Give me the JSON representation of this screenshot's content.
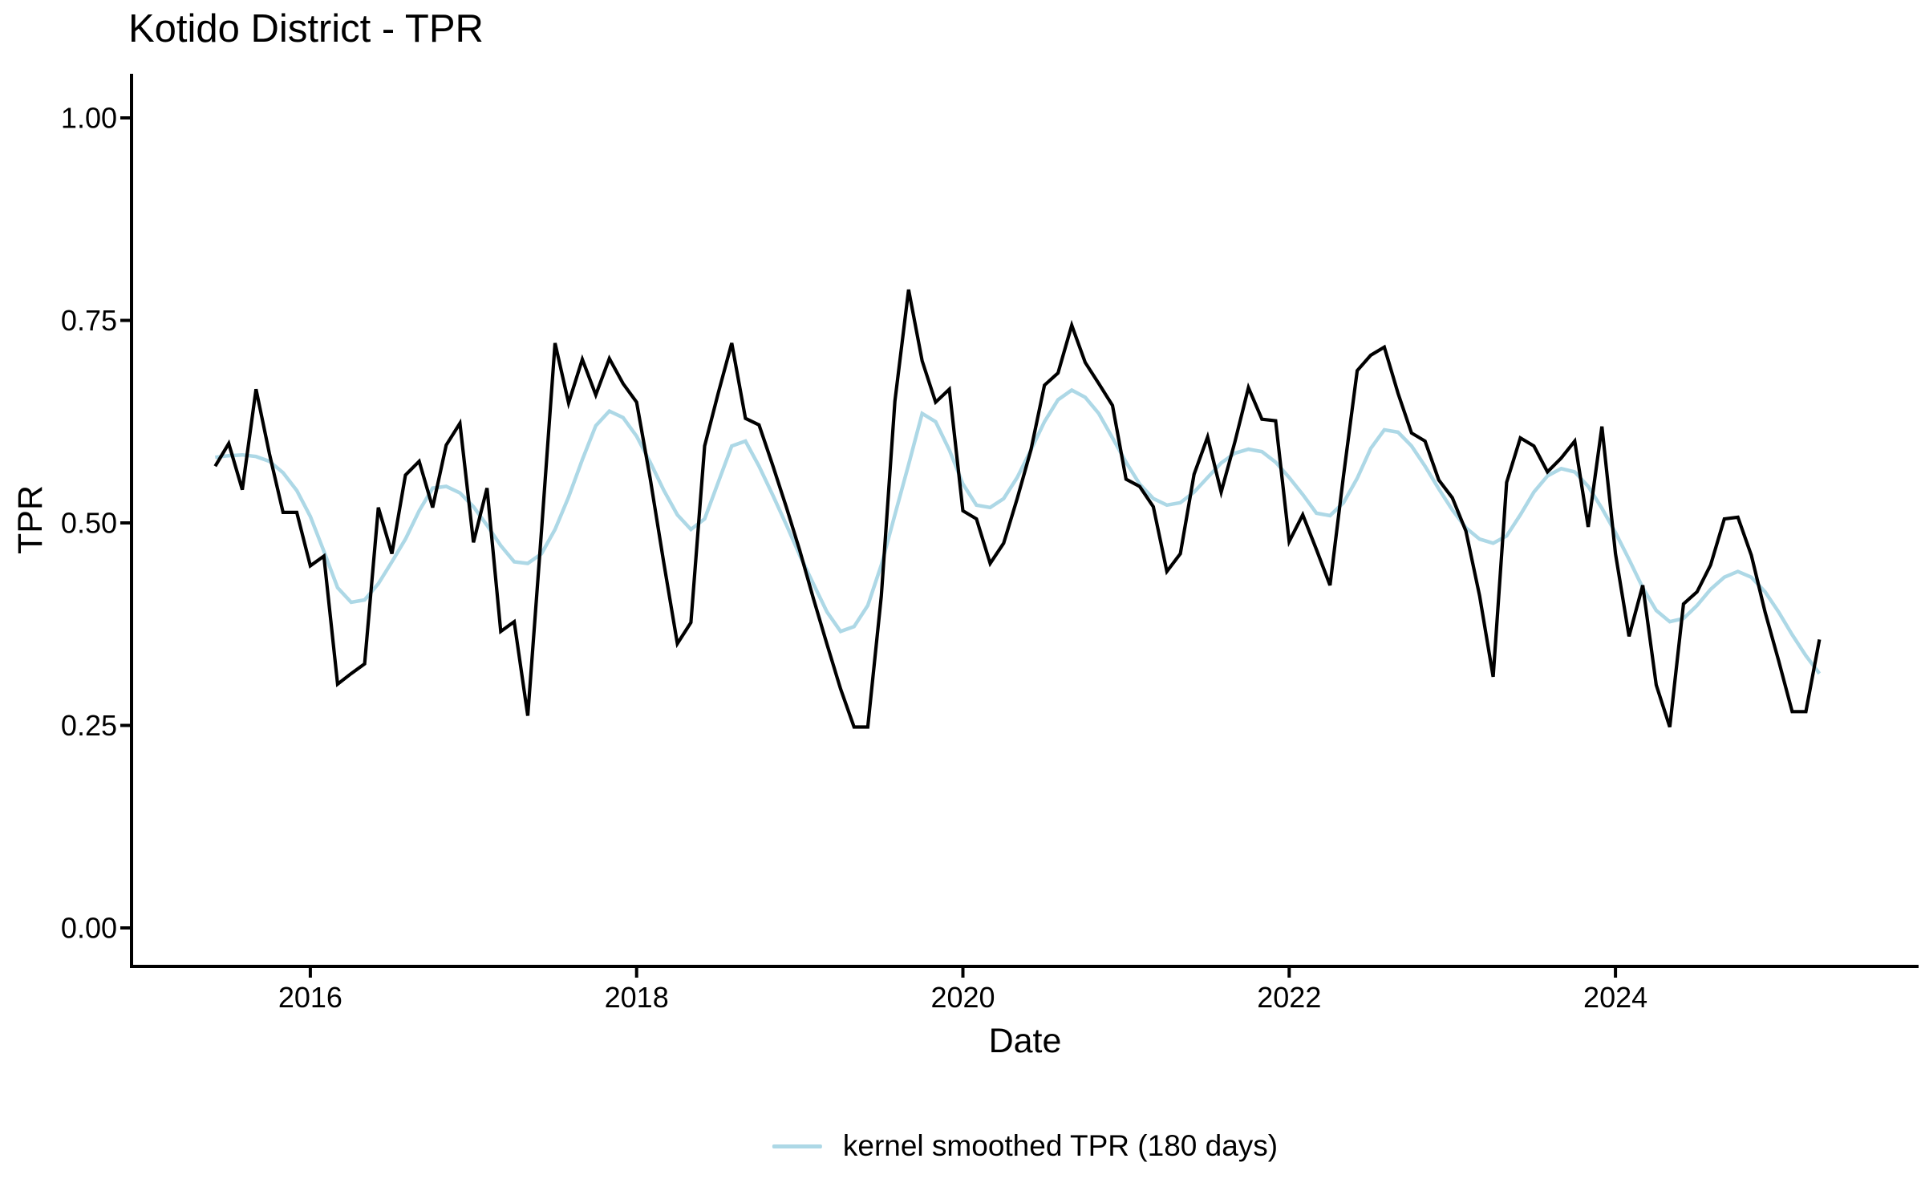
{
  "title": "Kotido District - TPR",
  "axes": {
    "x_label": "Date",
    "y_label": "TPR",
    "x_tick_values": [
      2016,
      2018,
      2020,
      2022,
      2024
    ],
    "x_tick_labels": [
      "2016",
      "2018",
      "2020",
      "2022",
      "2024"
    ],
    "y_tick_values": [
      0,
      0.25,
      0.5,
      0.75,
      1
    ],
    "y_tick_labels": [
      "0.00",
      "0.25",
      "0.50",
      "0.75",
      "1.00"
    ]
  },
  "legend": {
    "label": "kernel smoothed TPR (180 days)",
    "swatch_color": "#ADD8E6"
  },
  "colors": {
    "raw_line": "#000000",
    "smoothed_line": "#ADD8E6",
    "axis": "#000000",
    "background": "#ffffff"
  },
  "chart_data": {
    "type": "line",
    "title": "Kotido District - TPR",
    "xlabel": "Date",
    "ylabel": "TPR",
    "xlim": [
      2014.9,
      2025.85
    ],
    "ylim": [
      -0.048,
      1.062
    ],
    "grid": false,
    "legend_position": "bottom",
    "x_unit": "decimal_year_monthly",
    "x": [
      2015.417,
      2015.5,
      2015.583,
      2015.667,
      2015.75,
      2015.833,
      2015.917,
      2016,
      2016.083,
      2016.167,
      2016.25,
      2016.333,
      2016.417,
      2016.5,
      2016.583,
      2016.667,
      2016.75,
      2016.833,
      2016.917,
      2017,
      2017.083,
      2017.167,
      2017.25,
      2017.333,
      2017.417,
      2017.5,
      2017.583,
      2017.667,
      2017.75,
      2017.833,
      2017.917,
      2018,
      2018.083,
      2018.167,
      2018.25,
      2018.333,
      2018.417,
      2018.5,
      2018.583,
      2018.667,
      2018.75,
      2018.833,
      2018.917,
      2019,
      2019.083,
      2019.167,
      2019.25,
      2019.333,
      2019.417,
      2019.5,
      2019.583,
      2019.667,
      2019.75,
      2019.833,
      2019.917,
      2020,
      2020.083,
      2020.167,
      2020.25,
      2020.333,
      2020.417,
      2020.5,
      2020.583,
      2020.667,
      2020.75,
      2020.833,
      2020.917,
      2021,
      2021.083,
      2021.167,
      2021.25,
      2021.333,
      2021.417,
      2021.5,
      2021.583,
      2021.667,
      2021.75,
      2021.833,
      2021.917,
      2022,
      2022.083,
      2022.167,
      2022.25,
      2022.333,
      2022.417,
      2022.5,
      2022.583,
      2022.667,
      2022.75,
      2022.833,
      2022.917,
      2023,
      2023.083,
      2023.167,
      2023.25,
      2023.333,
      2023.417,
      2023.5,
      2023.583,
      2023.667,
      2023.75,
      2023.833,
      2023.917,
      2024,
      2024.083,
      2024.167,
      2024.25,
      2024.333,
      2024.417,
      2024.5,
      2024.583,
      2024.667,
      2024.75,
      2024.833,
      2024.917,
      2025,
      2025.083,
      2025.167,
      2025.25
    ],
    "series": [
      {
        "name": "TPR",
        "color": "#000000",
        "stroke_width": 4.2,
        "values": [
          0.57,
          0.598,
          0.541,
          0.665,
          0.585,
          0.513,
          0.513,
          0.447,
          0.459,
          0.301,
          0.314,
          0.326,
          0.519,
          0.462,
          0.559,
          0.576,
          0.519,
          0.596,
          0.623,
          0.476,
          0.543,
          0.366,
          0.378,
          0.262,
          0.49,
          0.722,
          0.648,
          0.702,
          0.658,
          0.703,
          0.672,
          0.649,
          0.555,
          0.45,
          0.351,
          0.377,
          0.595,
          0.66,
          0.722,
          0.629,
          0.621,
          0.572,
          0.52,
          0.466,
          0.407,
          0.35,
          0.295,
          0.248,
          0.248,
          0.41,
          0.65,
          0.788,
          0.7,
          0.649,
          0.665,
          0.515,
          0.505,
          0.45,
          0.475,
          0.53,
          0.59,
          0.67,
          0.685,
          0.744,
          0.698,
          0.672,
          0.645,
          0.554,
          0.545,
          0.52,
          0.44,
          0.462,
          0.56,
          0.606,
          0.538,
          0.6,
          0.667,
          0.628,
          0.626,
          0.477,
          0.51,
          0.467,
          0.423,
          0.558,
          0.688,
          0.707,
          0.717,
          0.66,
          0.611,
          0.601,
          0.553,
          0.531,
          0.49,
          0.41,
          0.31,
          0.55,
          0.605,
          0.595,
          0.563,
          0.58,
          0.601,
          0.495,
          0.619,
          0.462,
          0.36,
          0.423,
          0.3,
          0.248,
          0.4,
          0.415,
          0.448,
          0.505,
          0.507,
          0.46,
          0.39,
          0.33,
          0.267,
          0.267,
          0.356
        ]
      },
      {
        "name": "kernel smoothed TPR (180 days)",
        "color": "#ADD8E6",
        "stroke_width": 4.5,
        "values": [
          0.581,
          0.583,
          0.584,
          0.582,
          0.576,
          0.562,
          0.54,
          0.508,
          0.465,
          0.42,
          0.402,
          0.405,
          0.425,
          0.452,
          0.48,
          0.515,
          0.543,
          0.545,
          0.537,
          0.52,
          0.497,
          0.472,
          0.452,
          0.45,
          0.462,
          0.492,
          0.532,
          0.578,
          0.62,
          0.638,
          0.63,
          0.607,
          0.575,
          0.54,
          0.51,
          0.492,
          0.505,
          0.55,
          0.595,
          0.601,
          0.57,
          0.535,
          0.498,
          0.46,
          0.425,
          0.39,
          0.366,
          0.372,
          0.398,
          0.448,
          0.51,
          0.572,
          0.635,
          0.625,
          0.59,
          0.548,
          0.522,
          0.519,
          0.53,
          0.556,
          0.59,
          0.625,
          0.652,
          0.664,
          0.655,
          0.635,
          0.605,
          0.575,
          0.548,
          0.53,
          0.522,
          0.525,
          0.538,
          0.556,
          0.574,
          0.586,
          0.591,
          0.588,
          0.575,
          0.556,
          0.535,
          0.512,
          0.509,
          0.525,
          0.555,
          0.592,
          0.615,
          0.612,
          0.595,
          0.57,
          0.542,
          0.516,
          0.494,
          0.48,
          0.475,
          0.484,
          0.51,
          0.538,
          0.558,
          0.567,
          0.563,
          0.545,
          0.518,
          0.488,
          0.455,
          0.42,
          0.392,
          0.378,
          0.382,
          0.398,
          0.418,
          0.433,
          0.44,
          0.433,
          0.415,
          0.39,
          0.362,
          0.336,
          0.314
        ]
      }
    ]
  }
}
